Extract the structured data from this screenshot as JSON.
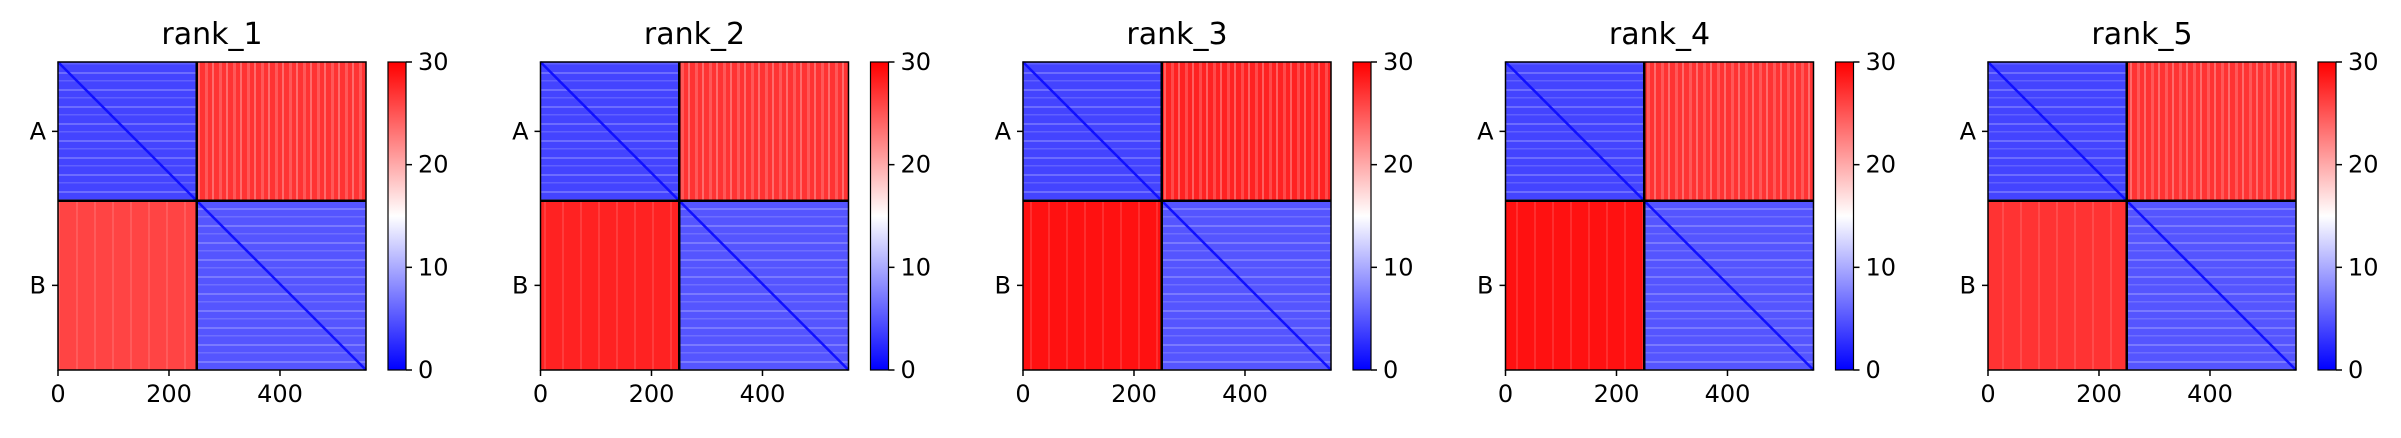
{
  "chart_data": [
    {
      "type": "heatmap",
      "title": "rank_1",
      "chain_labels": [
        "A",
        "B"
      ],
      "chain_boundary": 250,
      "total_residues": 555,
      "xlim": [
        0,
        555
      ],
      "x_ticks": [
        "0",
        "200",
        "400"
      ],
      "x_tick_values": [
        0,
        200,
        400
      ],
      "colorbar": {
        "range": [
          0,
          30
        ],
        "ticks": [
          "0",
          "10",
          "20",
          "30"
        ],
        "tick_values": [
          0,
          10,
          20,
          30
        ],
        "colormap": "bwr"
      },
      "blocks": {
        "A-A": 4,
        "A-B": 27,
        "B-A": 26,
        "B-B": 5
      },
      "block_labels": [
        "A-A",
        "A-B",
        "B-A",
        "B-B"
      ],
      "grid": false,
      "legend": "colorbar-right"
    },
    {
      "type": "heatmap",
      "title": "rank_2",
      "chain_labels": [
        "A",
        "B"
      ],
      "chain_boundary": 250,
      "total_residues": 555,
      "xlim": [
        0,
        555
      ],
      "x_ticks": [
        "0",
        "200",
        "400"
      ],
      "x_tick_values": [
        0,
        200,
        400
      ],
      "colorbar": {
        "range": [
          0,
          30
        ],
        "ticks": [
          "0",
          "10",
          "20",
          "30"
        ],
        "tick_values": [
          0,
          10,
          20,
          30
        ],
        "colormap": "bwr"
      },
      "blocks": {
        "A-A": 4,
        "A-B": 27,
        "B-A": 28,
        "B-B": 5
      },
      "block_labels": [
        "A-A",
        "A-B",
        "B-A",
        "B-B"
      ],
      "grid": false,
      "legend": "colorbar-right"
    },
    {
      "type": "heatmap",
      "title": "rank_3",
      "chain_labels": [
        "A",
        "B"
      ],
      "chain_boundary": 250,
      "total_residues": 555,
      "xlim": [
        0,
        555
      ],
      "x_ticks": [
        "0",
        "200",
        "400"
      ],
      "x_tick_values": [
        0,
        200,
        400
      ],
      "colorbar": {
        "range": [
          0,
          30
        ],
        "ticks": [
          "0",
          "10",
          "20",
          "30"
        ],
        "tick_values": [
          0,
          10,
          20,
          30
        ],
        "colormap": "bwr"
      },
      "blocks": {
        "A-A": 4,
        "A-B": 28,
        "B-A": 29,
        "B-B": 5
      },
      "block_labels": [
        "A-A",
        "A-B",
        "B-A",
        "B-B"
      ],
      "grid": false,
      "legend": "colorbar-right"
    },
    {
      "type": "heatmap",
      "title": "rank_4",
      "chain_labels": [
        "A",
        "B"
      ],
      "chain_boundary": 250,
      "total_residues": 555,
      "xlim": [
        0,
        555
      ],
      "x_ticks": [
        "0",
        "200",
        "400"
      ],
      "x_tick_values": [
        0,
        200,
        400
      ],
      "colorbar": {
        "range": [
          0,
          30
        ],
        "ticks": [
          "0",
          "10",
          "20",
          "30"
        ],
        "tick_values": [
          0,
          10,
          20,
          30
        ],
        "colormap": "bwr"
      },
      "blocks": {
        "A-A": 4,
        "A-B": 27,
        "B-A": 29,
        "B-B": 5
      },
      "block_labels": [
        "A-A",
        "A-B",
        "B-A",
        "B-B"
      ],
      "grid": false,
      "legend": "colorbar-right"
    },
    {
      "type": "heatmap",
      "title": "rank_5",
      "chain_labels": [
        "A",
        "B"
      ],
      "chain_boundary": 250,
      "total_residues": 555,
      "xlim": [
        0,
        555
      ],
      "x_ticks": [
        "0",
        "200",
        "400"
      ],
      "x_tick_values": [
        0,
        200,
        400
      ],
      "colorbar": {
        "range": [
          0,
          30
        ],
        "ticks": [
          "0",
          "10",
          "20",
          "30"
        ],
        "tick_values": [
          0,
          10,
          20,
          30
        ],
        "colormap": "bwr"
      },
      "blocks": {
        "A-A": 4,
        "A-B": 27,
        "B-A": 27,
        "B-B": 5
      },
      "block_labels": [
        "A-A",
        "A-B",
        "B-A",
        "B-B"
      ],
      "grid": false,
      "legend": "colorbar-right"
    }
  ]
}
